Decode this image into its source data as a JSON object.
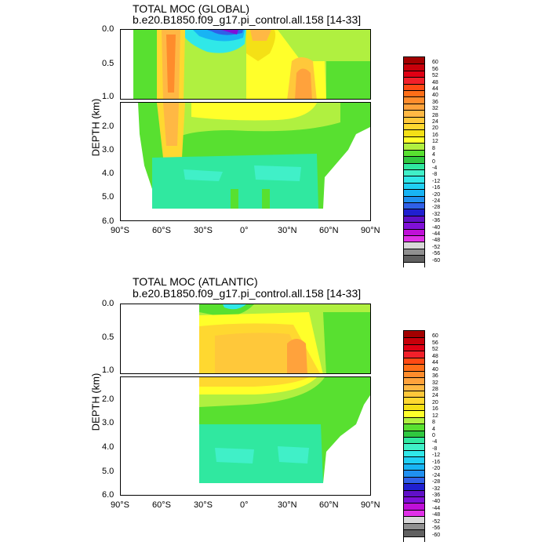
{
  "chart_data": [
    {
      "type": "heatmap",
      "title": "TOTAL MOC (GLOBAL)",
      "subtitle": "b.e20.B1850.f09_g17.pi_control.all.158 [14-33]",
      "ylabel": "DEPTH (km)",
      "x_ticks": [
        "90°S",
        "60°S",
        "30°S",
        "0°",
        "30°N",
        "60°N",
        "90°N"
      ],
      "y_ticks_upper": [
        "0.0",
        "0.5",
        "1.0"
      ],
      "y_ticks_lower": [
        "2.0",
        "3.0",
        "4.0",
        "5.0",
        "6.0"
      ],
      "xlim": [
        -90,
        90
      ],
      "ylim_upper": [
        0,
        1.0
      ],
      "ylim_lower": [
        1.0,
        6.0
      ]
    },
    {
      "type": "heatmap",
      "title": "TOTAL MOC (ATLANTIC)",
      "subtitle": "b.e20.B1850.f09_g17.pi_control.all.158 [14-33]",
      "ylabel": "DEPTH (km)",
      "x_ticks": [
        "90°S",
        "60°S",
        "30°S",
        "0°",
        "30°N",
        "60°N",
        "90°N"
      ],
      "y_ticks_upper": [
        "0.0",
        "0.5",
        "1.0"
      ],
      "y_ticks_lower": [
        "2.0",
        "3.0",
        "4.0",
        "5.0",
        "6.0"
      ],
      "xlim": [
        -90,
        90
      ],
      "ylim_upper": [
        0,
        1.0
      ],
      "ylim_lower": [
        1.0,
        6.0
      ]
    }
  ],
  "colorbar": {
    "labels": [
      "60",
      "56",
      "52",
      "48",
      "44",
      "40",
      "36",
      "32",
      "28",
      "24",
      "20",
      "16",
      "12",
      "8",
      "4",
      "0",
      "-4",
      "-8",
      "-12",
      "-16",
      "-20",
      "-24",
      "-28",
      "-32",
      "-36",
      "-40",
      "-44",
      "-48",
      "-52",
      "-56",
      "-60"
    ],
    "colors": [
      "#a30000",
      "#c8000a",
      "#e00014",
      "#f2202a",
      "#ff4a14",
      "#ff6e18",
      "#ff8c2c",
      "#ffa23c",
      "#ffb844",
      "#ffc83a",
      "#ffd830",
      "#f4e016",
      "#ffff2a",
      "#b0f040",
      "#58e030",
      "#30c840",
      "#30e8a0",
      "#40f0c8",
      "#30e8e8",
      "#20d0f4",
      "#18b4f4",
      "#2090f0",
      "#3060e8",
      "#2020d0",
      "#6010c8",
      "#8010d8",
      "#c010d8",
      "#e030e8",
      "#d8d8d8",
      "#909090",
      "#606060",
      "#ffffff"
    ]
  }
}
